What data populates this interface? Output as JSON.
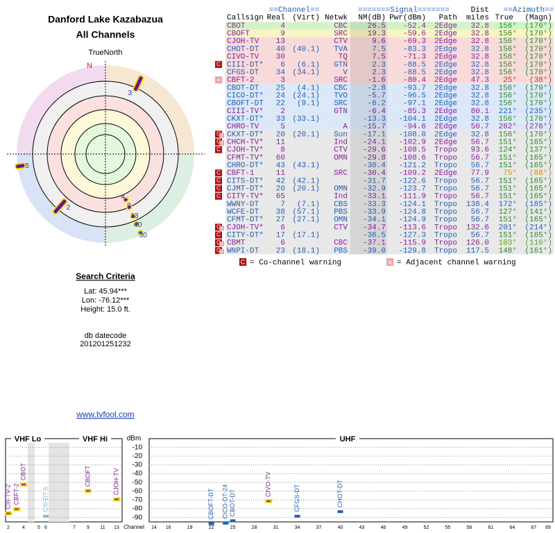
{
  "header": {
    "title": "Danford Lake Kazabazua",
    "subtitle": "All Channels"
  },
  "polar": {
    "north_label": "TrueNorth",
    "n": "N",
    "markers": [
      "3",
      "5",
      "2",
      "4",
      "9",
      "13",
      "40",
      "30"
    ]
  },
  "search": {
    "title": "Search Criteria",
    "lat": "Lat: 45.94***",
    "lon": "Lon: -76.12***",
    "height": "Height: 15.0 ft.",
    "db_label": "db datecode",
    "db_code": "201201251232",
    "link": "www.tvfool.com"
  },
  "table": {
    "headers": {
      "channel": "==Channel==",
      "signal": "=======Signal=======",
      "dist": "Dist",
      "azimuth": "==Azimuth==",
      "callsign": "Callsign",
      "real": "Real",
      "virt": "(Virt)",
      "netwk": "Netwk",
      "nm": "NM(dB)",
      "pwr": "Pwr(dBm)",
      "path": "Path",
      "miles": "miles",
      "true": "True",
      "magn": "(Magn)"
    },
    "rows": [
      {
        "callsign": "CBOT",
        "real": "4",
        "virt": null,
        "netwk": "CBC",
        "nm": "26.5",
        "pwr": "-52.4",
        "path": "2Edge",
        "dist": "32.8",
        "az": "156°",
        "magn": "(170°)",
        "color": "#8a1fa0",
        "bg": "#d4f4c8",
        "az_color": "#2a8a2a",
        "warn": []
      },
      {
        "callsign": "CBOFT",
        "real": "9",
        "virt": null,
        "netwk": "SRC",
        "nm": "19.3",
        "pwr": "-59.6",
        "path": "2Edge",
        "dist": "32.8",
        "az": "156°",
        "magn": "(170°)",
        "color": "#8a1fa0",
        "bg": "#f8f4c4",
        "az_color": "#2a8a2a",
        "warn": []
      },
      {
        "callsign": "CJOH-TV",
        "real": "13",
        "virt": null,
        "netwk": "CTV",
        "nm": "9.6",
        "pwr": "-69.3",
        "path": "2Edge",
        "dist": "32.8",
        "az": "156°",
        "magn": "(170°)",
        "color": "#8a1fa0",
        "bg": "#f8dada",
        "az_color": "#2a8a2a",
        "warn": []
      },
      {
        "callsign": "CHOT-DT",
        "real": "40",
        "virt": "(40.1)",
        "netwk": "TVA",
        "nm": "7.5",
        "pwr": "-83.3",
        "path": "2Edge",
        "dist": "32.8",
        "az": "156°",
        "magn": "(170°)",
        "color": "#1f5fc8",
        "bg": "#f8dada",
        "az_color": "#2a8a2a",
        "warn": []
      },
      {
        "callsign": "CIVO-TV",
        "real": "30",
        "virt": null,
        "netwk": "TQ",
        "nm": "7.5",
        "pwr": "-71.3",
        "path": "2Edge",
        "dist": "32.8",
        "az": "156°",
        "magn": "(170°)",
        "color": "#8a1fa0",
        "bg": "#f8dada",
        "az_color": "#2a8a2a",
        "warn": []
      },
      {
        "callsign": "CIII-DT*",
        "real": "6",
        "virt": "(6.1)",
        "netwk": "GTN",
        "nm": "2.3",
        "pwr": "-88.5",
        "path": "2Edge",
        "dist": "32.8",
        "az": "156°",
        "magn": "(170°)",
        "color": "#1f5fc8",
        "bg": "#f8dada",
        "az_color": "#2a8a2a",
        "warn": [
          "C"
        ]
      },
      {
        "callsign": "CFGS-DT",
        "real": "34",
        "virt": "(34.1)",
        "netwk": "V",
        "nm": "2.3",
        "pwr": "-88.5",
        "path": "2Edge",
        "dist": "32.8",
        "az": "156°",
        "magn": "(170°)",
        "color": "#1f5fc8",
        "bg": "#f8dada",
        "az_color": "#2a8a2a",
        "warn": []
      },
      {
        "callsign": "CBFT-2",
        "real": "3",
        "virt": null,
        "netwk": "SRC",
        "nm": "-1.6",
        "pwr": "-80.4",
        "path": "2Edge",
        "dist": "47.3",
        "az": "25°",
        "magn": "(38°)",
        "color": "#8a1fa0",
        "bg": "#f8dada",
        "az_color": "#d03030",
        "warn": [
          "a"
        ]
      },
      {
        "callsign": "CBOT-DT",
        "real": "25",
        "virt": "(4.1)",
        "netwk": "CBC",
        "nm": "-2.8",
        "pwr": "-93.7",
        "path": "2Edge",
        "dist": "32.8",
        "az": "156°",
        "magn": "(170°)",
        "color": "#1f5fc8",
        "bg": "#dce8f8",
        "az_color": "#2a8a2a",
        "warn": []
      },
      {
        "callsign": "CICO-DT*",
        "real": "24",
        "virt": "(24.1)",
        "netwk": "TVO",
        "nm": "-5.7",
        "pwr": "-96.5",
        "path": "2Edge",
        "dist": "32.8",
        "az": "156°",
        "magn": "(170°)",
        "color": "#1f5fc8",
        "bg": "#dce8f8",
        "az_color": "#2a8a2a",
        "warn": []
      },
      {
        "callsign": "CBOFT-DT",
        "real": "22",
        "virt": "(9.1)",
        "netwk": "SRC",
        "nm": "-6.2",
        "pwr": "-97.1",
        "path": "2Edge",
        "dist": "32.8",
        "az": "156°",
        "magn": "(170°)",
        "color": "#1f5fc8",
        "bg": "#dce8f8",
        "az_color": "#2a8a2a",
        "warn": []
      },
      {
        "callsign": "CIII-TV*",
        "real": "2",
        "virt": null,
        "netwk": "GTN",
        "nm": "-6.4",
        "pwr": "-85.3",
        "path": "2Edge",
        "dist": "80.1",
        "az": "221°",
        "magn": "(235°)",
        "color": "#8a1fa0",
        "bg": "#dce8f8",
        "az_color": "#1f5fc8",
        "warn": []
      },
      {
        "callsign": "CKXT-DT*",
        "real": "33",
        "virt": "(33.1)",
        "netwk": null,
        "nm": "-13.3",
        "pwr": "-104.1",
        "path": "2Edge",
        "dist": "32.8",
        "az": "156°",
        "magn": "(170°)",
        "color": "#1f5fc8",
        "bg": "#dce8f8",
        "az_color": "#2a8a2a",
        "warn": []
      },
      {
        "callsign": "CHRO-TV",
        "real": "5",
        "virt": null,
        "netwk": "A",
        "nm": "-15.7",
        "pwr": "-94.6",
        "path": "2Edge",
        "dist": "50.7",
        "az": "262°",
        "magn": "(276°)",
        "color": "#8a1fa0",
        "bg": "#dce8f8",
        "az_color": "#8a1fa0",
        "warn": []
      },
      {
        "callsign": "CKXT-DT*",
        "real": "20",
        "virt": "(20.1)",
        "netwk": "Sun",
        "nm": "-17.1",
        "pwr": "-108.0",
        "path": "2Edge",
        "dist": "32.8",
        "az": "156°",
        "magn": "(170°)",
        "color": "#1f5fc8",
        "bg": "#e8e8e8",
        "az_color": "#2a8a2a",
        "warn": [
          "C",
          "a"
        ]
      },
      {
        "callsign": "CHCH-TV*",
        "real": "11",
        "virt": null,
        "netwk": "Ind",
        "nm": "-24.1",
        "pwr": "-102.9",
        "path": "2Edge",
        "dist": "56.7",
        "az": "151°",
        "magn": "(165°)",
        "color": "#8a1fa0",
        "bg": "#e8e8e8",
        "az_color": "#2a8a2a",
        "warn": [
          "C",
          "a"
        ]
      },
      {
        "callsign": "CJOH-TV*",
        "real": "8",
        "virt": null,
        "netwk": "CTV",
        "nm": "-29.6",
        "pwr": "-108.5",
        "path": "Tropo",
        "dist": "93.6",
        "az": "124°",
        "magn": "(137°)",
        "color": "#8a1fa0",
        "bg": "#e8e8e8",
        "az_color": "#2a8a2a",
        "warn": [
          "C"
        ]
      },
      {
        "callsign": "CFMT-TV*",
        "real": "60",
        "virt": null,
        "netwk": "OMN",
        "nm": "-29.8",
        "pwr": "-108.6",
        "path": "Tropo",
        "dist": "56.7",
        "az": "151°",
        "magn": "(165°)",
        "color": "#8a1fa0",
        "bg": "#e8e8e8",
        "az_color": "#2a8a2a",
        "warn": []
      },
      {
        "callsign": "CHRO-DT*",
        "real": "43",
        "virt": "(43.1)",
        "netwk": null,
        "nm": "-30.4",
        "pwr": "-121.2",
        "path": "Tropo",
        "dist": "56.7",
        "az": "151°",
        "magn": "(165°)",
        "color": "#1f5fc8",
        "bg": "#e8e8e8",
        "az_color": "#2a8a2a",
        "warn": []
      },
      {
        "callsign": "CBFT-1",
        "real": "11",
        "virt": null,
        "netwk": "SRC",
        "nm": "-30.4",
        "pwr": "-109.2",
        "path": "2Edge",
        "dist": "77.9",
        "az": "75°",
        "magn": "(88°)",
        "color": "#8a1fa0",
        "bg": "#e8e8e8",
        "az_color": "#c89000",
        "warn": [
          "C"
        ]
      },
      {
        "callsign": "CITS-DT*",
        "real": "42",
        "virt": "(42.1)",
        "netwk": null,
        "nm": "-31.7",
        "pwr": "-122.6",
        "path": "Tropo",
        "dist": "56.7",
        "az": "151°",
        "magn": "(165°)",
        "color": "#1f5fc8",
        "bg": "#e8e8e8",
        "az_color": "#2a8a2a",
        "warn": [
          "C"
        ]
      },
      {
        "callsign": "CJMT-DT*",
        "real": "20",
        "virt": "(20.1)",
        "netwk": "OMN",
        "nm": "-32.9",
        "pwr": "-123.7",
        "path": "Tropo",
        "dist": "56.7",
        "az": "151°",
        "magn": "(165°)",
        "color": "#1f5fc8",
        "bg": "#e8e8e8",
        "az_color": "#2a8a2a",
        "warn": [
          "C"
        ]
      },
      {
        "callsign": "CITY-TV*",
        "real": "65",
        "virt": null,
        "netwk": "Ind",
        "nm": "-33.1",
        "pwr": "-111.9",
        "path": "Tropo",
        "dist": "56.7",
        "az": "151°",
        "magn": "(165°)",
        "color": "#8a1fa0",
        "bg": "#e8e8e8",
        "az_color": "#2a8a2a",
        "warn": [
          "C"
        ]
      },
      {
        "callsign": "WWNY-DT",
        "real": "7",
        "virt": "(7.1)",
        "netwk": "CBS",
        "nm": "-33.3",
        "pwr": "-124.1",
        "path": "Tropo",
        "dist": "138.4",
        "az": "172°",
        "magn": "(185°)",
        "color": "#1f5fc8",
        "bg": "#e8e8e8",
        "az_color": "#1f5fc8",
        "warn": []
      },
      {
        "callsign": "WCFE-DT",
        "real": "38",
        "virt": "(57.1)",
        "netwk": "PBS",
        "nm": "-33.9",
        "pwr": "-124.8",
        "path": "Tropo",
        "dist": "56.7",
        "az": "127°",
        "magn": "(141°)",
        "color": "#1f5fc8",
        "bg": "#e8e8e8",
        "az_color": "#2a8a2a",
        "warn": []
      },
      {
        "callsign": "CFMT-DT*",
        "real": "27",
        "virt": "(27.1)",
        "netwk": "OMN",
        "nm": "-34.1",
        "pwr": "-124.9",
        "path": "Tropo",
        "dist": "56.7",
        "az": "151°",
        "magn": "(165°)",
        "color": "#1f5fc8",
        "bg": "#e8e8e8",
        "az_color": "#2a8a2a",
        "warn": []
      },
      {
        "callsign": "CJOH-TV*",
        "real": "6",
        "virt": null,
        "netwk": "CTV",
        "nm": "-34.7",
        "pwr": "-113.6",
        "path": "Tropo",
        "dist": "132.6",
        "az": "201°",
        "magn": "(214°)",
        "color": "#8a1fa0",
        "bg": "#e8e8e8",
        "az_color": "#1f5fc8",
        "warn": [
          "C",
          "a"
        ]
      },
      {
        "callsign": "CITY-DT*",
        "real": "17",
        "virt": "(17.1)",
        "netwk": null,
        "nm": "-36.5",
        "pwr": "-127.3",
        "path": "Tropo",
        "dist": "56.7",
        "az": "151°",
        "magn": "(165°)",
        "color": "#1f5fc8",
        "bg": "#e8e8e8",
        "az_color": "#2a8a2a",
        "warn": [
          "C"
        ]
      },
      {
        "callsign": "CBMT",
        "real": "6",
        "virt": null,
        "netwk": "CBC",
        "nm": "-37.1",
        "pwr": "-115.9",
        "path": "Tropo",
        "dist": "126.0",
        "az": "103°",
        "magn": "(116°)",
        "color": "#8a1fa0",
        "bg": "#e8e8e8",
        "az_color": "#60a020",
        "warn": [
          "C",
          "a"
        ]
      },
      {
        "callsign": "WNPI-DT",
        "real": "23",
        "virt": "(18.1)",
        "netwk": "PBS",
        "nm": "-39.0",
        "pwr": "-129.8",
        "path": "Tropo",
        "dist": "117.5",
        "az": "148°",
        "magn": "(161°)",
        "color": "#1f5fc8",
        "bg": "#e8e8e8",
        "az_color": "#2a8a2a",
        "warn": [
          "C",
          "a"
        ]
      }
    ]
  },
  "legend": {
    "co_box": "C",
    "co_text": "= Co-channel warning",
    "adj_box": "a",
    "adj_text": "= Adjacent channel warning"
  },
  "spectrum": {
    "bands": [
      "VHF Lo",
      "VHF Hi",
      "UHF"
    ],
    "y_unit": "dBm",
    "x_label": "Channel",
    "ylim": [
      -95,
      0
    ],
    "yticks": [
      -10,
      -20,
      -30,
      -40,
      -50,
      -60,
      -70,
      -80,
      -90
    ],
    "vhf_ticks": [
      2,
      4,
      5,
      6,
      7,
      9,
      11,
      13
    ],
    "uhf_ticks": [
      14,
      16,
      19,
      22,
      25,
      28,
      31,
      34,
      37,
      40,
      43,
      46,
      49,
      52,
      55,
      58,
      61,
      64,
      67,
      69
    ],
    "stations": [
      {
        "name": "CIII-TV-2",
        "channel": 2,
        "value": -85.3,
        "color": "#8a1fa0"
      },
      {
        "name": "CBFT-2",
        "channel": 3,
        "value": -80.4,
        "color": "#8a1fa0"
      },
      {
        "name": "CBOT",
        "channel": 4,
        "value": -52.4,
        "color": "#8a1fa0"
      },
      {
        "name": "CIII-DT-6",
        "channel": 6,
        "value": -88.5,
        "color": "#80b8e0"
      },
      {
        "name": "CBOFT",
        "channel": 9,
        "value": -59.6,
        "color": "#8a1fa0"
      },
      {
        "name": "CJOH-TV",
        "channel": 13,
        "value": -69.3,
        "color": "#8a1fa0"
      },
      {
        "name": "CBOFT-DT",
        "channel": 22,
        "value": -97.1,
        "color": "#1f5fc8"
      },
      {
        "name": "CICO-DT-24",
        "channel": 24,
        "value": -96.5,
        "color": "#1f5fc8"
      },
      {
        "name": "CBOT-DT",
        "channel": 25,
        "value": -93.7,
        "color": "#1f5fc8"
      },
      {
        "name": "CIVO-TV",
        "channel": 30,
        "value": -71.3,
        "color": "#8a1fa0"
      },
      {
        "name": "CFGS-DT",
        "channel": 34,
        "value": -88.5,
        "color": "#1f5fc8"
      },
      {
        "name": "CHOT-DT",
        "channel": 40,
        "value": -83.3,
        "color": "#1f5fc8"
      }
    ]
  }
}
